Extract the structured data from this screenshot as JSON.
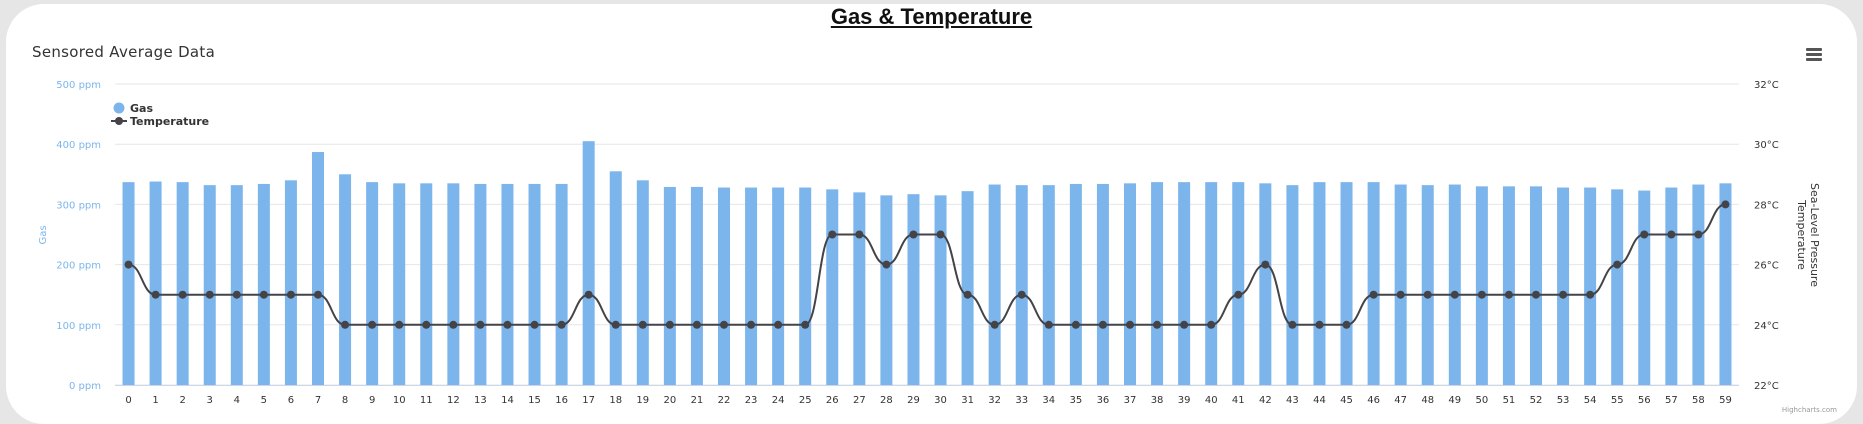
{
  "page_title": "Gas & Temperature",
  "chart_title": "Sensored Average Data",
  "credits": "Highcharts.com",
  "colors": {
    "gas": "#7cb5ec",
    "temperature": "#434348",
    "grid": "#e6e6e6"
  },
  "icons": {
    "menu": "hamburger-menu-icon"
  },
  "chart_data": {
    "type": "bar",
    "title": "Sensored Average Data",
    "x": [
      0,
      1,
      2,
      3,
      4,
      5,
      6,
      7,
      8,
      9,
      10,
      11,
      12,
      13,
      14,
      15,
      16,
      17,
      18,
      19,
      20,
      21,
      22,
      23,
      24,
      25,
      26,
      27,
      28,
      29,
      30,
      31,
      32,
      33,
      34,
      35,
      36,
      37,
      38,
      39,
      40,
      41,
      42,
      43,
      44,
      45,
      46,
      47,
      48,
      49,
      50,
      51,
      52,
      53,
      54,
      55,
      56,
      57,
      58,
      59
    ],
    "xlabel": "",
    "grid": true,
    "legend_position": "top-left",
    "y_left": {
      "title": "Gas",
      "range": [
        0,
        500
      ],
      "ticks": [
        "0 ppm",
        "100 ppm",
        "200 ppm",
        "300 ppm",
        "400 ppm",
        "500 ppm"
      ]
    },
    "y_right": {
      "title_line1": "Sea-Level Pressure",
      "title_line2": "Temperature",
      "range": [
        22,
        32
      ],
      "ticks": [
        "22°C",
        "24°C",
        "26°C",
        "28°C",
        "30°C",
        "32°C"
      ]
    },
    "series": [
      {
        "name": "Gas",
        "type": "column",
        "axis": "left",
        "values": [
          337,
          338,
          337,
          332,
          332,
          334,
          340,
          387,
          350,
          337,
          335,
          335,
          335,
          334,
          334,
          334,
          334,
          405,
          355,
          340,
          329,
          329,
          328,
          328,
          328,
          328,
          325,
          320,
          315,
          317,
          315,
          322,
          333,
          332,
          332,
          334,
          334,
          335,
          337,
          337,
          337,
          337,
          335,
          332,
          337,
          337,
          337,
          333,
          332,
          333,
          330,
          330,
          330,
          328,
          328,
          325,
          323,
          328,
          333,
          335
        ]
      },
      {
        "name": "Temperature",
        "type": "spline",
        "axis": "right",
        "values": [
          26,
          25,
          25,
          25,
          25,
          25,
          25,
          25,
          24,
          24,
          24,
          24,
          24,
          24,
          24,
          24,
          24,
          25,
          24,
          24,
          24,
          24,
          24,
          24,
          24,
          24,
          27,
          27,
          26,
          27,
          27,
          25,
          24,
          25,
          24,
          24,
          24,
          24,
          24,
          24,
          24,
          25,
          26,
          24,
          24,
          24,
          25,
          25,
          25,
          25,
          25,
          25,
          25,
          25,
          25,
          26,
          27,
          27,
          27,
          28
        ]
      }
    ]
  }
}
